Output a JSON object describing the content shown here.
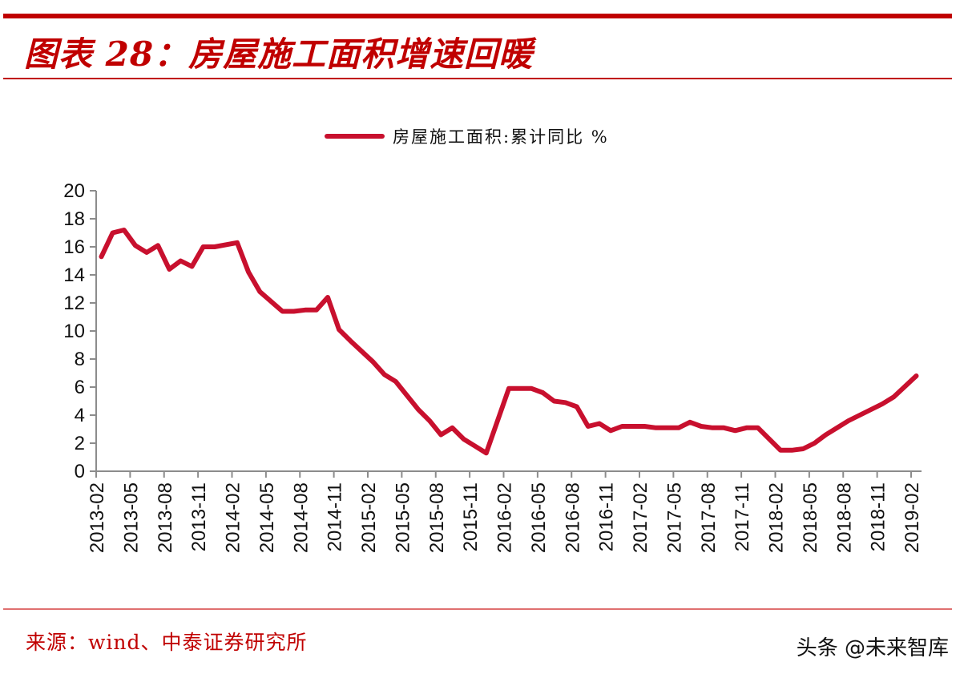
{
  "header": {
    "title": "图表 28：房屋施工面积增速回暖"
  },
  "footer": {
    "source": "来源：wind、中泰证券研究所",
    "watermark": "头条 @未来智库"
  },
  "colors": {
    "brand_red": "#c00000",
    "series_red": "#c8102e",
    "axis_gray": "#8c8c8c"
  },
  "chart_data": {
    "type": "line",
    "title": "",
    "legend": [
      "房屋施工面积:累计同比 %"
    ],
    "legend_position": "top-center",
    "grid": false,
    "xlabel": "",
    "ylabel": "",
    "ylim": [
      0,
      20
    ],
    "yticks": [
      0,
      2,
      4,
      6,
      8,
      10,
      12,
      14,
      16,
      18,
      20
    ],
    "xtick_labels": [
      "2013-02",
      "2013-05",
      "2013-08",
      "2013-11",
      "2014-02",
      "2014-05",
      "2014-08",
      "2014-11",
      "2015-02",
      "2015-05",
      "2015-08",
      "2015-11",
      "2016-02",
      "2016-05",
      "2016-08",
      "2016-11",
      "2017-02",
      "2017-05",
      "2017-08",
      "2017-11",
      "2018-02",
      "2018-05",
      "2018-08",
      "2018-11",
      "2019-02"
    ],
    "x": [
      "2013-02",
      "2013-03",
      "2013-04",
      "2013-05",
      "2013-06",
      "2013-07",
      "2013-08",
      "2013-09",
      "2013-10",
      "2013-11",
      "2013-12",
      "2014-01",
      "2014-02",
      "2014-03",
      "2014-04",
      "2014-05",
      "2014-06",
      "2014-07",
      "2014-08",
      "2014-09",
      "2014-10",
      "2014-11",
      "2014-12",
      "2015-01",
      "2015-02",
      "2015-03",
      "2015-04",
      "2015-05",
      "2015-06",
      "2015-07",
      "2015-08",
      "2015-09",
      "2015-10",
      "2015-11",
      "2015-12",
      "2016-01",
      "2016-02",
      "2016-03",
      "2016-04",
      "2016-05",
      "2016-06",
      "2016-07",
      "2016-08",
      "2016-09",
      "2016-10",
      "2016-11",
      "2016-12",
      "2017-01",
      "2017-02",
      "2017-03",
      "2017-04",
      "2017-05",
      "2017-06",
      "2017-07",
      "2017-08",
      "2017-09",
      "2017-10",
      "2017-11",
      "2017-12",
      "2018-01",
      "2018-02",
      "2018-03",
      "2018-04",
      "2018-05",
      "2018-06",
      "2018-07",
      "2018-08",
      "2018-09",
      "2018-10",
      "2018-11",
      "2018-12",
      "2019-01",
      "2019-02"
    ],
    "series": [
      {
        "name": "房屋施工面积:累计同比 %",
        "values": [
          15.3,
          17.0,
          17.2,
          16.1,
          15.6,
          16.1,
          14.4,
          15.0,
          14.6,
          16.0,
          16.0,
          null,
          16.3,
          14.2,
          12.8,
          12.1,
          11.4,
          11.4,
          11.5,
          11.5,
          12.4,
          10.1,
          9.3,
          null,
          7.8,
          6.9,
          6.4,
          5.4,
          4.4,
          3.6,
          2.6,
          3.1,
          2.3,
          1.8,
          1.3,
          null,
          5.9,
          5.9,
          5.9,
          5.6,
          5.0,
          4.9,
          4.6,
          3.2,
          3.4,
          2.9,
          3.2,
          null,
          3.2,
          3.1,
          3.1,
          3.1,
          3.5,
          3.2,
          3.1,
          3.1,
          2.9,
          3.1,
          3.1,
          null,
          1.5,
          1.5,
          1.6,
          2.0,
          2.6,
          3.1,
          3.6,
          4.0,
          4.4,
          4.8,
          5.3,
          null,
          6.8
        ]
      }
    ]
  }
}
